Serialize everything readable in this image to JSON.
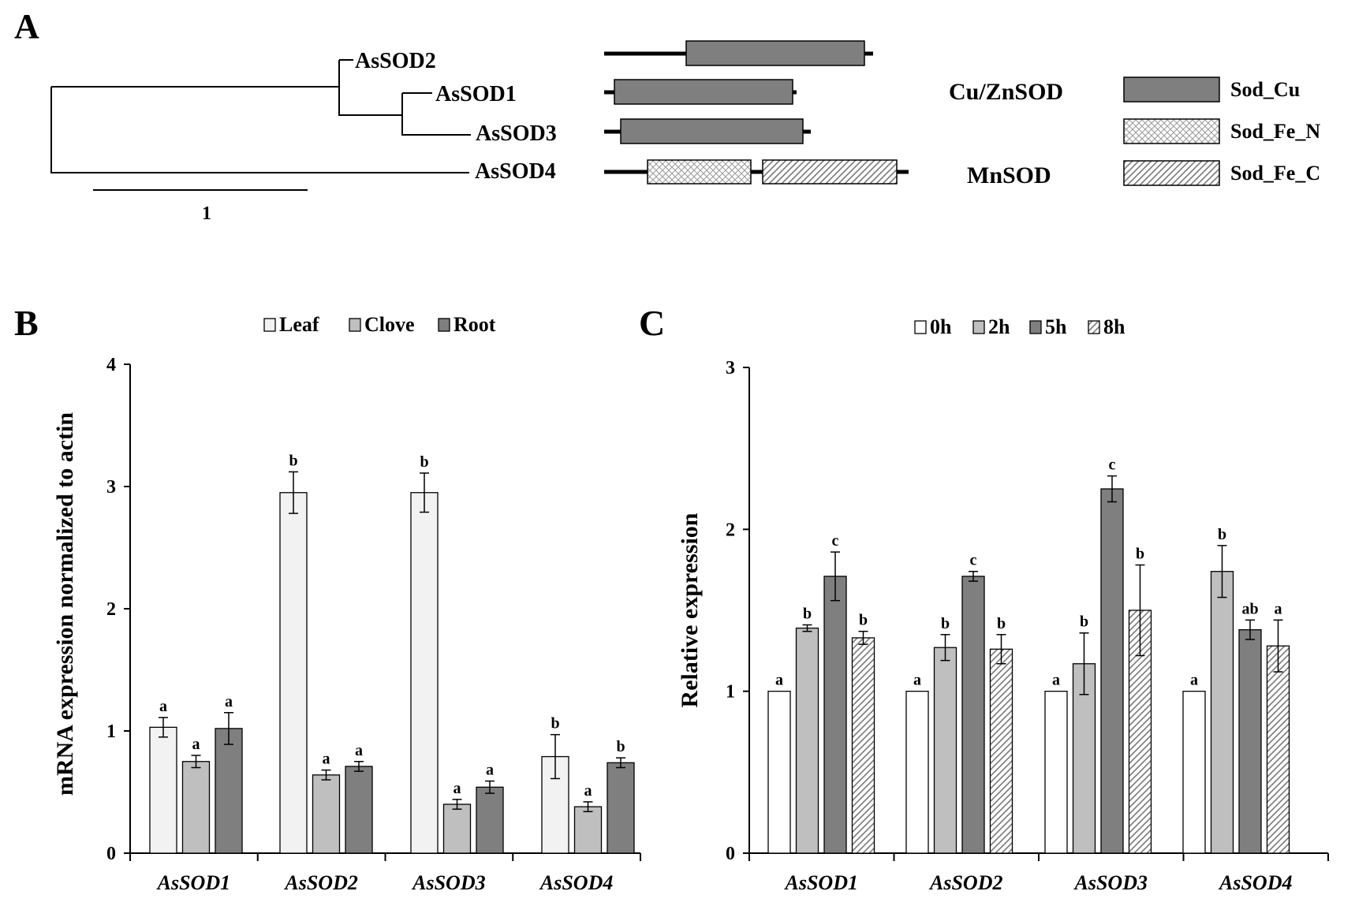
{
  "panels": {
    "a": "A",
    "b": "B",
    "c": "C"
  },
  "tree": {
    "scale_label": "1",
    "genes": [
      "AsSOD2",
      "AsSOD1",
      "AsSOD3",
      "AsSOD4"
    ],
    "group_labels": [
      "Cu/ZnSOD",
      "MnSOD"
    ],
    "legend": [
      {
        "label": "Sod_Cu",
        "fill": "#7f7f7f"
      },
      {
        "label": "Sod_Fe_N",
        "fill": "crosshatch"
      },
      {
        "label": "Sod_Fe_C",
        "fill": "diagonal"
      }
    ]
  },
  "colors": {
    "leaf": "#f2f2f2",
    "clove": "#bfbfbf",
    "root": "#7f7f7f",
    "h0": "#ffffff",
    "h2": "#bfbfbf",
    "h5": "#7f7f7f",
    "domain": "#7f7f7f"
  },
  "chart_data": [
    {
      "panel": "B",
      "type": "bar",
      "categories": [
        "AsSOD1",
        "AsSOD2",
        "AsSOD3",
        "AsSOD4"
      ],
      "ylabel": "mRNA expression  normalized  to actin",
      "ylim": [
        0,
        4
      ],
      "yticks": [
        "0",
        "1",
        "2",
        "3",
        "4"
      ],
      "legend_position": "top",
      "series": [
        {
          "name": "Leaf",
          "values": [
            1.03,
            2.95,
            2.95,
            0.79
          ],
          "errors": [
            0.08,
            0.17,
            0.16,
            0.18
          ],
          "letters": [
            "a",
            "b",
            "b",
            "b"
          ]
        },
        {
          "name": "Clove",
          "values": [
            0.75,
            0.64,
            0.4,
            0.38
          ],
          "errors": [
            0.05,
            0.04,
            0.04,
            0.04
          ],
          "letters": [
            "a",
            "a",
            "a",
            "a"
          ]
        },
        {
          "name": "Root",
          "values": [
            1.02,
            0.71,
            0.54,
            0.74
          ],
          "errors": [
            0.13,
            0.04,
            0.05,
            0.04
          ],
          "letters": [
            "a",
            "a",
            "a",
            "b"
          ]
        }
      ]
    },
    {
      "panel": "C",
      "type": "bar",
      "categories": [
        "AsSOD1",
        "AsSOD2",
        "AsSOD3",
        "AsSOD4"
      ],
      "ylabel": "Relative expression",
      "ylim": [
        0,
        3
      ],
      "yticks": [
        "0",
        "1",
        "2",
        "3"
      ],
      "legend_position": "top",
      "series": [
        {
          "name": "0h",
          "values": [
            1.0,
            1.0,
            1.0,
            1.0
          ],
          "errors": [
            0,
            0,
            0,
            0
          ],
          "letters": [
            "a",
            "a",
            "a",
            "a"
          ]
        },
        {
          "name": "2h",
          "values": [
            1.39,
            1.27,
            1.17,
            1.74
          ],
          "errors": [
            0.02,
            0.08,
            0.19,
            0.16
          ],
          "letters": [
            "b",
            "b",
            "b",
            "b"
          ]
        },
        {
          "name": "5h",
          "values": [
            1.71,
            1.71,
            2.25,
            1.38
          ],
          "errors": [
            0.15,
            0.03,
            0.08,
            0.06
          ],
          "letters": [
            "c",
            "c",
            "c",
            "ab"
          ]
        },
        {
          "name": "8h",
          "values": [
            1.33,
            1.26,
            1.5,
            1.28
          ],
          "errors": [
            0.04,
            0.09,
            0.28,
            0.16
          ],
          "letters": [
            "b",
            "b",
            "b",
            "a"
          ]
        }
      ]
    }
  ]
}
